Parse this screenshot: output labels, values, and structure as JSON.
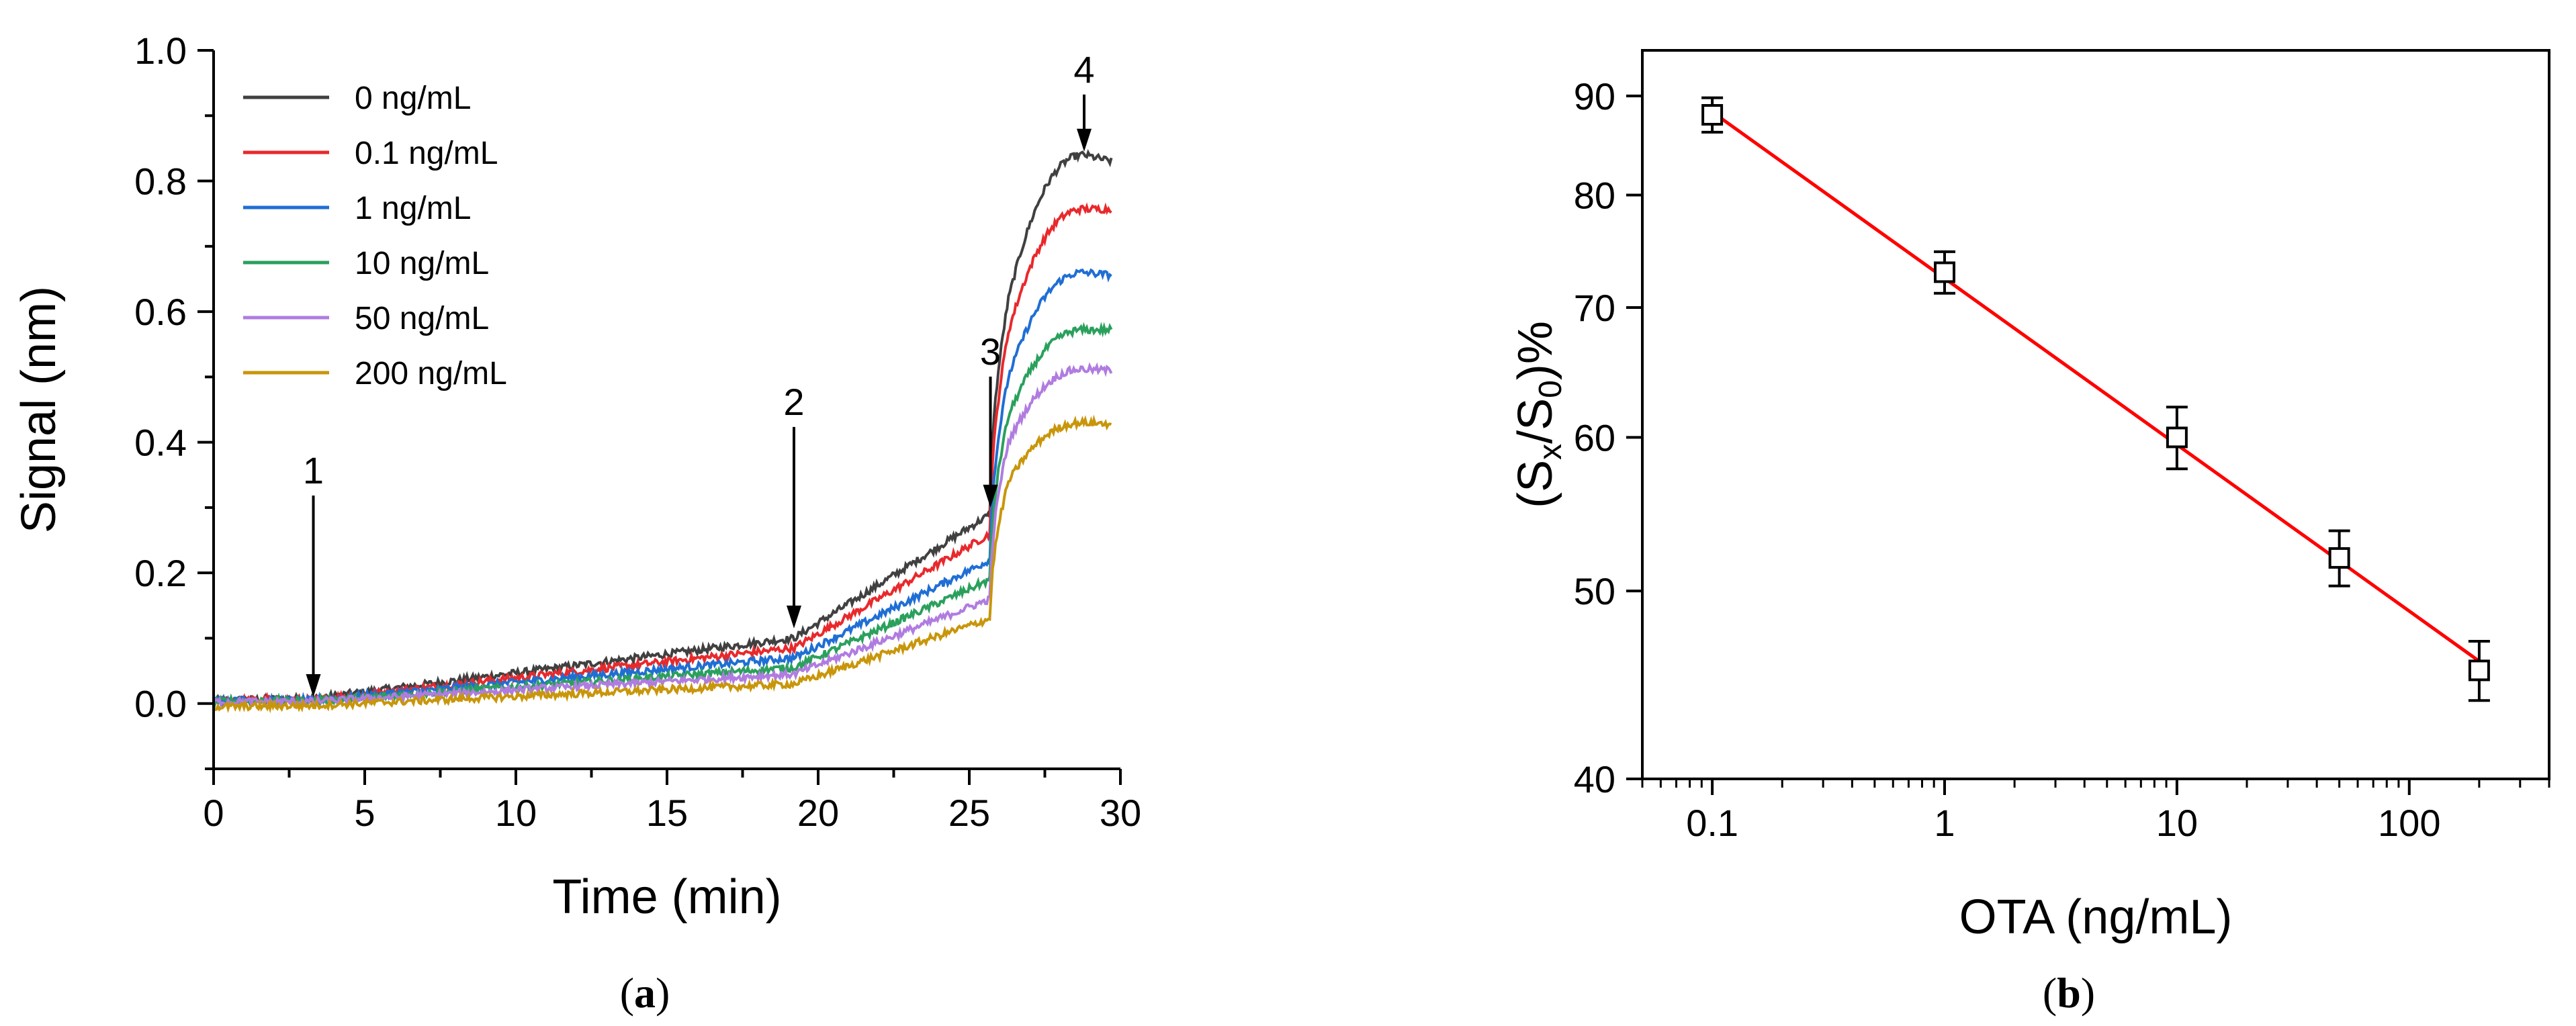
{
  "chart_data": [
    {
      "type": "line",
      "panel": "a",
      "caption": "(a)",
      "xlabel": "Time (min)",
      "ylabel": "Signal (nm)",
      "xlim": [
        0,
        30
      ],
      "ylim": [
        -0.1,
        1.0
      ],
      "xticks": [
        0,
        5,
        10,
        15,
        20,
        25,
        30
      ],
      "yticks": [
        0.0,
        0.2,
        0.4,
        0.6,
        0.8,
        1.0
      ],
      "xtick_labels": [
        "0",
        "5",
        "10",
        "15",
        "20",
        "25",
        "30"
      ],
      "ytick_labels": [
        "0.0",
        "0.2",
        "0.4",
        "0.6",
        "0.8",
        "1.0"
      ],
      "legend_position": "top-left",
      "breakpoints": [
        0,
        3.3,
        19.2,
        25.7,
        26.3,
        28.8,
        29.7
      ],
      "series": [
        {
          "name": "0 ng/mL",
          "color": "#404040",
          "values": [
            0.005,
            0.008,
            0.1,
            0.29,
            0.62,
            0.84,
            0.83
          ]
        },
        {
          "name": "0.1 ng/mL",
          "color": "#e8292c",
          "values": [
            0.005,
            0.006,
            0.085,
            0.26,
            0.57,
            0.757,
            0.757
          ]
        },
        {
          "name": "1 ng/mL",
          "color": "#1f6ed4",
          "values": [
            0.005,
            0.005,
            0.07,
            0.22,
            0.5,
            0.66,
            0.656
          ]
        },
        {
          "name": "10 ng/mL",
          "color": "#2aa05c",
          "values": [
            0.004,
            0.004,
            0.055,
            0.19,
            0.44,
            0.572,
            0.572
          ]
        },
        {
          "name": "50 ng/mL",
          "color": "#b07ce0",
          "values": [
            0.003,
            0.003,
            0.045,
            0.16,
            0.4,
            0.512,
            0.51
          ]
        },
        {
          "name": "200 ng/mL",
          "color": "#c8960a",
          "values": [
            -0.005,
            -0.003,
            0.03,
            0.13,
            0.34,
            0.43,
            0.428
          ]
        }
      ],
      "annotations": [
        {
          "label": "1",
          "x": 3.3,
          "y_tip": 0.01
        },
        {
          "label": "2",
          "x": 19.2,
          "y_tip": 0.115
        },
        {
          "label": "3",
          "x": 25.7,
          "y_tip": 0.3
        },
        {
          "label": "4",
          "x": 28.8,
          "y_tip": 0.845
        }
      ]
    },
    {
      "type": "scatter",
      "panel": "b",
      "caption": "(b)",
      "xlabel": "OTA (ng/mL)",
      "ylabel_parts": [
        "(S",
        "x",
        "/S",
        "0",
        ")%"
      ],
      "xscale": "log",
      "yscale": "log",
      "xlim": [
        0.05,
        400
      ],
      "ylim": [
        40,
        95
      ],
      "xticks": [
        0.1,
        1,
        10,
        100
      ],
      "xtick_labels": [
        "0.1",
        "1",
        "10",
        "100"
      ],
      "yticks": [
        40,
        50,
        60,
        70,
        80,
        90
      ],
      "ytick_labels": [
        "40",
        "50",
        "60",
        "70",
        "80",
        "90"
      ],
      "points": [
        {
          "x": 0.1,
          "y": 88,
          "err": 1.8
        },
        {
          "x": 1,
          "y": 73,
          "err": 1.8
        },
        {
          "x": 10,
          "y": 60,
          "err": 2.2
        },
        {
          "x": 50,
          "y": 52,
          "err": 1.7
        },
        {
          "x": 200,
          "y": 45.5,
          "err": 1.6
        }
      ],
      "fit_line": {
        "color": "#ff0000",
        "x": [
          0.1,
          200
        ],
        "y": [
          88.3,
          46.0
        ]
      }
    }
  ]
}
